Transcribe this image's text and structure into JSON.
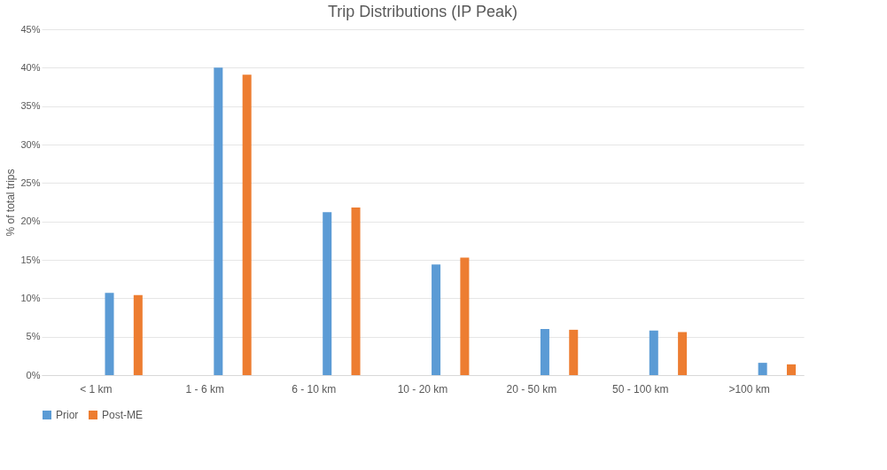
{
  "chart_data": {
    "type": "bar",
    "title": "Trip Distributions (IP Peak)",
    "ylabel": "% of total trips",
    "categories": [
      "< 1 km",
      "1 - 6 km",
      "6 - 10 km",
      "10 - 20 km",
      "20 - 50 km",
      "50 - 100 km",
      ">100 km"
    ],
    "series": [
      {
        "name": "Prior",
        "color": "#5b9bd5",
        "values": [
          10.7,
          40.0,
          21.2,
          14.4,
          6.0,
          5.8,
          1.6
        ]
      },
      {
        "name": "Post-ME",
        "color": "#ed7d31",
        "values": [
          10.4,
          39.1,
          21.8,
          15.3,
          5.9,
          5.6,
          1.4
        ]
      }
    ],
    "ylim": [
      0,
      45
    ],
    "yticks": [
      {
        "value": 0,
        "label": "0%"
      },
      {
        "value": 5,
        "label": "5%"
      },
      {
        "value": 10,
        "label": "10%"
      },
      {
        "value": 15,
        "label": "15%"
      },
      {
        "value": 20,
        "label": "20%"
      },
      {
        "value": 25,
        "label": "25%"
      },
      {
        "value": 30,
        "label": "30%"
      },
      {
        "value": 35,
        "label": "35%"
      },
      {
        "value": 40,
        "label": "40%"
      },
      {
        "value": 45,
        "label": "45%"
      }
    ],
    "grid": "y",
    "legend": "bottom"
  }
}
